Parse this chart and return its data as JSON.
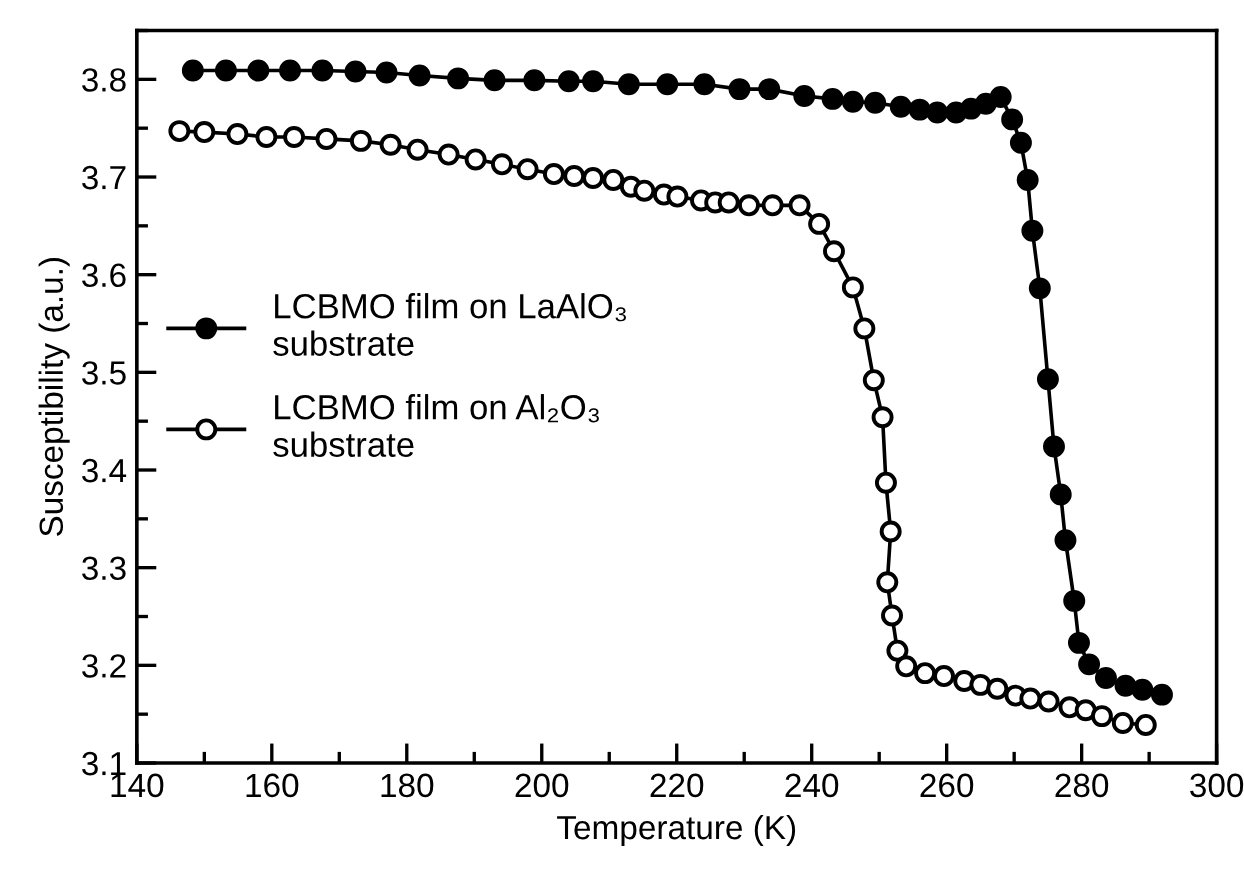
{
  "chart_data": {
    "type": "line",
    "xlabel": "Temperature (K)",
    "ylabel": "Susceptibility (a.u.)",
    "xlim": [
      140,
      300
    ],
    "ylim": [
      3.1,
      3.85
    ],
    "xticks": [
      140,
      160,
      180,
      200,
      220,
      240,
      260,
      280,
      300
    ],
    "yticks": [
      3.1,
      3.2,
      3.3,
      3.4,
      3.5,
      3.6,
      3.7,
      3.8
    ],
    "grid": false,
    "legend": "left",
    "line_style": "solid",
    "series": [
      {
        "name": "LCBMO film on LaAlO₃\nsubstrate",
        "color": "#000000",
        "marker": "circle",
        "x": [
          148.3,
          153.2,
          158.0,
          162.7,
          167.5,
          172.4,
          177.0,
          181.9,
          187.6,
          193.0,
          198.9,
          204.0,
          207.6,
          212.9,
          218.6,
          224.1,
          229.3,
          233.7,
          238.9,
          243.1,
          246.1,
          249.4,
          253.2,
          256.0,
          258.6,
          261.4,
          263.6,
          265.8,
          268.0,
          269.7,
          271.0,
          272.0,
          272.7,
          273.8,
          275.0,
          275.9,
          276.9,
          277.6,
          278.9,
          279.6,
          281.1,
          283.6,
          286.5,
          289.0,
          291.9
        ],
        "values": [
          3.809,
          3.809,
          3.809,
          3.809,
          3.809,
          3.808,
          3.807,
          3.804,
          3.801,
          3.799,
          3.799,
          3.798,
          3.798,
          3.795,
          3.795,
          3.795,
          3.79,
          3.79,
          3.783,
          3.78,
          3.777,
          3.776,
          3.772,
          3.769,
          3.766,
          3.766,
          3.77,
          3.775,
          3.782,
          3.759,
          3.735,
          3.697,
          3.645,
          3.586,
          3.493,
          3.424,
          3.375,
          3.328,
          3.266,
          3.223,
          3.201,
          3.187,
          3.179,
          3.175,
          3.17
        ]
      },
      {
        "name": "LCBMO film on Al₂O₃\nsubstrate",
        "color": "#000000",
        "marker": "circle",
        "x": [
          146.3,
          150.0,
          154.9,
          159.2,
          163.3,
          168.1,
          173.2,
          177.6,
          181.6,
          186.2,
          190.2,
          194.1,
          197.9,
          201.8,
          204.8,
          207.6,
          210.6,
          213.2,
          215.2,
          218.1,
          220.1,
          223.6,
          225.7,
          227.7,
          230.7,
          234.2,
          238.2,
          241.1,
          243.3,
          246.1,
          247.8,
          249.2,
          250.5,
          251.0,
          251.7,
          251.2,
          251.9,
          252.7,
          254.0,
          256.8,
          259.6,
          262.6,
          265.0,
          267.5,
          270.2,
          272.4,
          275.1,
          278.2,
          280.6,
          283.0,
          286.1,
          289.5
        ],
        "values": [
          3.747,
          3.746,
          3.744,
          3.741,
          3.741,
          3.739,
          3.737,
          3.733,
          3.728,
          3.723,
          3.718,
          3.713,
          3.708,
          3.703,
          3.701,
          3.699,
          3.697,
          3.69,
          3.686,
          3.682,
          3.68,
          3.676,
          3.674,
          3.674,
          3.671,
          3.671,
          3.671,
          3.652,
          3.624,
          3.587,
          3.545,
          3.492,
          3.454,
          3.387,
          3.337,
          3.285,
          3.251,
          3.215,
          3.199,
          3.192,
          3.189,
          3.184,
          3.18,
          3.176,
          3.169,
          3.166,
          3.163,
          3.157,
          3.154,
          3.148,
          3.141,
          3.139
        ]
      }
    ]
  }
}
